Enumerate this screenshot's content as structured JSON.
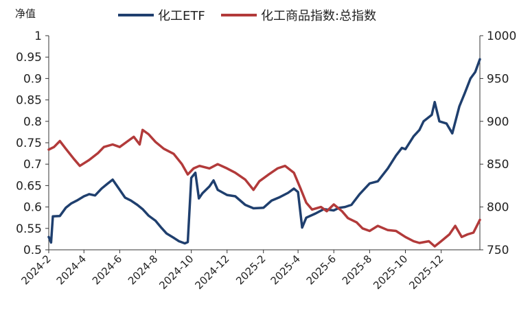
{
  "chart_data": {
    "type": "line",
    "ylabel": "净值",
    "y_left": {
      "min": 0.5,
      "max": 1.0,
      "ticks": [
        "0.5",
        "0.55",
        "0.6",
        "0.65",
        "0.7",
        "0.75",
        "0.8",
        "0.85",
        "0.9",
        "0.95",
        "1"
      ]
    },
    "y_right": {
      "min": 750,
      "max": 1000,
      "ticks": [
        "750",
        "800",
        "850",
        "900",
        "950",
        "1000"
      ]
    },
    "x_ticks": [
      "2024-2",
      "2024-4",
      "2024-6",
      "2024-8",
      "2024-10",
      "2024-12",
      "2025-2",
      "2025-4",
      "2025-6",
      "2025-8",
      "2025-10",
      "2025-12"
    ],
    "x_range": [
      "2024-02",
      "2026-02-05"
    ],
    "legend_position": "top",
    "series": [
      {
        "name": "化工ETF",
        "axis": "left",
        "color": "#1f3f6e",
        "points": [
          [
            "2024-02-01",
            0.53
          ],
          [
            "2024-02-05",
            0.517
          ],
          [
            "2024-02-08",
            0.578
          ],
          [
            "2024-02-20",
            0.579
          ],
          [
            "2024-03-01",
            0.598
          ],
          [
            "2024-03-10",
            0.608
          ],
          [
            "2024-03-20",
            0.615
          ],
          [
            "2024-04-01",
            0.625
          ],
          [
            "2024-04-10",
            0.63
          ],
          [
            "2024-04-20",
            0.627
          ],
          [
            "2024-05-01",
            0.643
          ],
          [
            "2024-05-10",
            0.653
          ],
          [
            "2024-05-20",
            0.664
          ],
          [
            "2024-06-01",
            0.64
          ],
          [
            "2024-06-10",
            0.622
          ],
          [
            "2024-06-20",
            0.615
          ],
          [
            "2024-07-01",
            0.605
          ],
          [
            "2024-07-10",
            0.595
          ],
          [
            "2024-07-20",
            0.58
          ],
          [
            "2024-08-01",
            0.568
          ],
          [
            "2024-08-10",
            0.553
          ],
          [
            "2024-08-20",
            0.538
          ],
          [
            "2024-09-01",
            0.528
          ],
          [
            "2024-09-10",
            0.52
          ],
          [
            "2024-09-20",
            0.515
          ],
          [
            "2024-09-25",
            0.518
          ],
          [
            "2024-10-01",
            0.668
          ],
          [
            "2024-10-08",
            0.68
          ],
          [
            "2024-10-14",
            0.62
          ],
          [
            "2024-10-20",
            0.632
          ],
          [
            "2024-11-01",
            0.648
          ],
          [
            "2024-11-08",
            0.662
          ],
          [
            "2024-11-15",
            0.64
          ],
          [
            "2024-12-01",
            0.628
          ],
          [
            "2024-12-15",
            0.625
          ],
          [
            "2025-01-01",
            0.605
          ],
          [
            "2025-01-15",
            0.597
          ],
          [
            "2025-02-01",
            0.598
          ],
          [
            "2025-02-15",
            0.615
          ],
          [
            "2025-03-01",
            0.623
          ],
          [
            "2025-03-15",
            0.633
          ],
          [
            "2025-03-25",
            0.643
          ],
          [
            "2025-04-01",
            0.635
          ],
          [
            "2025-04-08",
            0.552
          ],
          [
            "2025-04-15",
            0.575
          ],
          [
            "2025-05-01",
            0.585
          ],
          [
            "2025-05-15",
            0.595
          ],
          [
            "2025-06-01",
            0.592
          ],
          [
            "2025-06-10",
            0.598
          ],
          [
            "2025-06-20",
            0.6
          ],
          [
            "2025-07-01",
            0.605
          ],
          [
            "2025-07-15",
            0.63
          ],
          [
            "2025-08-01",
            0.655
          ],
          [
            "2025-08-15",
            0.66
          ],
          [
            "2025-09-01",
            0.69
          ],
          [
            "2025-09-15",
            0.72
          ],
          [
            "2025-09-25",
            0.738
          ],
          [
            "2025-10-01",
            0.735
          ],
          [
            "2025-10-15",
            0.765
          ],
          [
            "2025-10-25",
            0.78
          ],
          [
            "2025-11-01",
            0.8
          ],
          [
            "2025-11-15",
            0.815
          ],
          [
            "2025-11-20",
            0.845
          ],
          [
            "2025-11-28",
            0.8
          ],
          [
            "2025-12-10",
            0.795
          ],
          [
            "2025-12-20",
            0.772
          ],
          [
            "2026-01-01",
            0.835
          ],
          [
            "2026-01-10",
            0.865
          ],
          [
            "2026-01-20",
            0.9
          ],
          [
            "2026-01-28",
            0.915
          ],
          [
            "2026-02-05",
            0.945
          ]
        ]
      },
      {
        "name": "化工商品指数:总指数",
        "axis": "right",
        "color": "#b23a3a",
        "points": [
          [
            "2024-02-01",
            867
          ],
          [
            "2024-02-10",
            870
          ],
          [
            "2024-02-20",
            877
          ],
          [
            "2024-03-01",
            868
          ],
          [
            "2024-03-15",
            856
          ],
          [
            "2024-03-25",
            848
          ],
          [
            "2024-04-10",
            855
          ],
          [
            "2024-04-25",
            863
          ],
          [
            "2024-05-05",
            870
          ],
          [
            "2024-05-20",
            873
          ],
          [
            "2024-06-01",
            870
          ],
          [
            "2024-06-15",
            877
          ],
          [
            "2024-06-25",
            882
          ],
          [
            "2024-07-05",
            873
          ],
          [
            "2024-07-10",
            890
          ],
          [
            "2024-07-20",
            885
          ],
          [
            "2024-08-01",
            876
          ],
          [
            "2024-08-15",
            868
          ],
          [
            "2024-09-01",
            862
          ],
          [
            "2024-09-15",
            850
          ],
          [
            "2024-09-25",
            838
          ],
          [
            "2024-10-05",
            845
          ],
          [
            "2024-10-15",
            848
          ],
          [
            "2024-11-01",
            845
          ],
          [
            "2024-11-15",
            850
          ],
          [
            "2024-12-01",
            845
          ],
          [
            "2024-12-15",
            840
          ],
          [
            "2025-01-01",
            832
          ],
          [
            "2025-01-15",
            820
          ],
          [
            "2025-01-25",
            830
          ],
          [
            "2025-02-10",
            838
          ],
          [
            "2025-02-25",
            845
          ],
          [
            "2025-03-10",
            848
          ],
          [
            "2025-03-25",
            840
          ],
          [
            "2025-04-05",
            822
          ],
          [
            "2025-04-15",
            805
          ],
          [
            "2025-04-25",
            797
          ],
          [
            "2025-05-10",
            800
          ],
          [
            "2025-05-20",
            795
          ],
          [
            "2025-06-01",
            803
          ],
          [
            "2025-06-15",
            795
          ],
          [
            "2025-06-25",
            787
          ],
          [
            "2025-07-10",
            782
          ],
          [
            "2025-07-20",
            775
          ],
          [
            "2025-08-01",
            772
          ],
          [
            "2025-08-15",
            778
          ],
          [
            "2025-09-01",
            773
          ],
          [
            "2025-09-15",
            772
          ],
          [
            "2025-10-01",
            765
          ],
          [
            "2025-10-15",
            760
          ],
          [
            "2025-10-25",
            758
          ],
          [
            "2025-11-10",
            760
          ],
          [
            "2025-11-20",
            754
          ],
          [
            "2025-12-01",
            760
          ],
          [
            "2025-12-15",
            768
          ],
          [
            "2025-12-25",
            778
          ],
          [
            "2026-01-05",
            765
          ],
          [
            "2026-01-15",
            768
          ],
          [
            "2026-01-25",
            770
          ],
          [
            "2026-02-05",
            785
          ]
        ]
      }
    ]
  }
}
